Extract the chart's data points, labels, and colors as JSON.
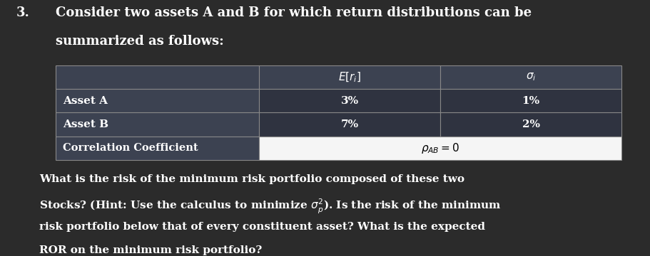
{
  "title_number": "3.",
  "title_line1": "Consider two assets A and B for which return distributions can be",
  "title_line2": "summarized as follows:",
  "col1_header": "",
  "col2_header": "$E[r_i]$",
  "col3_header": "$\\sigma_i$",
  "row1_label": "Asset A",
  "row1_col2": "3%",
  "row1_col3": "1%",
  "row2_label": "Asset B",
  "row2_col2": "7%",
  "row2_col3": "2%",
  "row3_label": "Correlation Coefficient",
  "row3_merged": "$\\rho_{AB} = 0$",
  "q1": "What is the risk of the minimum risk portfolio composed of these two",
  "q2": "Stocks? (Hint: Use the calculus to minimize $\\sigma_p^2$). Is the risk of the minimum",
  "q3": "risk portfolio below that of every constituent asset? What is the expected",
  "q4": "ROR on the minimum risk portfolio?",
  "bg_color": "#2b2b2b",
  "header_row_bg": "#3a3f4a",
  "data_row_bg": "#3a3f4a",
  "corr_row_bg": "#ffffff",
  "corr_label_bg": "#3a3f4a",
  "data_row_val_bg": "#2b2b2b",
  "border_color": "#aaaaaa",
  "text_white": "#ffffff",
  "text_black": "#000000",
  "title_fontsize": 13,
  "table_fontsize": 11,
  "q_fontsize": 11
}
